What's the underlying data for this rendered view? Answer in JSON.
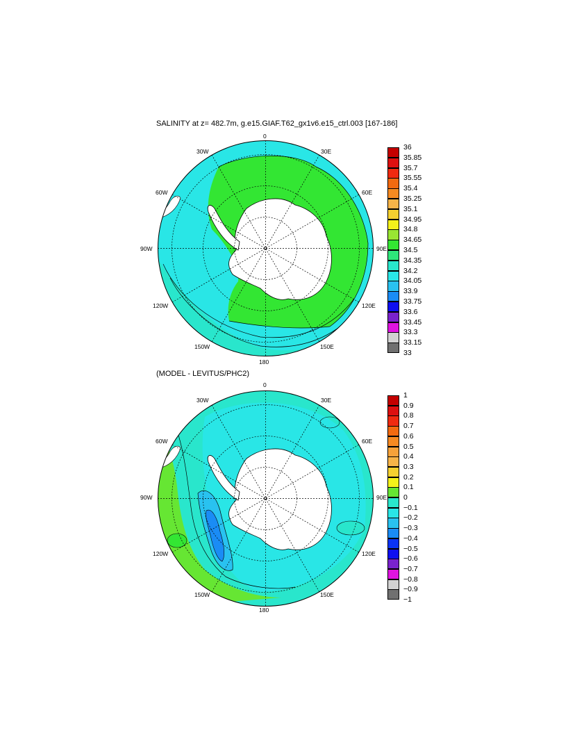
{
  "panels": [
    {
      "id": "salinity",
      "title": "SALINITY at z= 482.7m, g.e15.GIAF.T62_gx1v6.e15_ctrl.003 [167-186]",
      "longitude_labels": {
        "top": "0",
        "bottom": "180",
        "left": "90W",
        "right": "90E",
        "upper_left": "30W",
        "upper_right": "30E",
        "mid_upper_left": "60W",
        "mid_upper_right": "60E",
        "mid_lower_left": "120W",
        "mid_lower_right": "120E",
        "lower_left": "150W",
        "lower_right": "150E"
      },
      "colorbar": {
        "labels": [
          "36",
          "35.85",
          "35.7",
          "35.55",
          "35.4",
          "35.25",
          "35.1",
          "34.95",
          "34.8",
          "34.65",
          "34.5",
          "34.35",
          "34.2",
          "34.05",
          "33.9",
          "33.75",
          "33.6",
          "33.45",
          "33.3",
          "33.15",
          "33"
        ],
        "colors": [
          "#c40000",
          "#dd1010",
          "#f02a10",
          "#f26a10",
          "#f58a22",
          "#f6a23a",
          "#f7b448",
          "#f5d030",
          "#f4f11a",
          "#99e633",
          "#33e633",
          "#2ee67a",
          "#29e6cc",
          "#29e6e6",
          "#29c2f0",
          "#1a8cf5",
          "#0a33f5",
          "#0f0ff0",
          "#7a22cc",
          "#e014e0",
          "#d2d2d2",
          "#707070"
        ]
      }
    },
    {
      "id": "difference",
      "title": "(MODEL - LEVITUS/PHC2)",
      "longitude_labels": {
        "top": "0",
        "bottom": "180",
        "left": "90W",
        "right": "90E",
        "upper_left": "30W",
        "upper_right": "30E",
        "mid_upper_left": "60W",
        "mid_upper_right": "60E",
        "mid_lower_left": "120W",
        "mid_lower_right": "120E",
        "lower_left": "150W",
        "lower_right": "150E"
      },
      "colorbar": {
        "labels": [
          "1",
          "0.9",
          "0.8",
          "0.7",
          "0.6",
          "0.5",
          "0.4",
          "0.3",
          "0.2",
          "0.1",
          "0",
          "−0.1",
          "−0.2",
          "−0.3",
          "−0.4",
          "−0.5",
          "−0.6",
          "−0.7",
          "−0.8",
          "−0.9",
          "−1"
        ],
        "colors": [
          "#c40000",
          "#dd1010",
          "#f02a10",
          "#f26a10",
          "#f58a22",
          "#f6a23a",
          "#f7b448",
          "#f5d030",
          "#f4f11a",
          "#66e633",
          "#2ee67a",
          "#29e6cc",
          "#29e6e6",
          "#29c2f0",
          "#1a8cf5",
          "#0a33f5",
          "#0f0ff0",
          "#7a22cc",
          "#e014e0",
          "#d2d2d2",
          "#707070"
        ]
      }
    }
  ]
}
